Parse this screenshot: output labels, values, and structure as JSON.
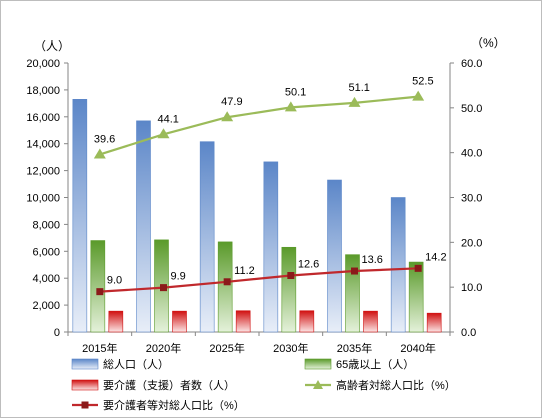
{
  "chart_data": {
    "type": "bar",
    "categories": [
      "2015年",
      "2020年",
      "2025年",
      "2030年",
      "2035年",
      "2040年"
    ],
    "y_left": {
      "unit": "（人）",
      "ylim": [
        0,
        20000
      ],
      "ticks": [
        "0",
        "2,000",
        "4,000",
        "6,000",
        "8,000",
        "10,000",
        "12,000",
        "14,000",
        "16,000",
        "18,000",
        "20,000"
      ]
    },
    "y_right": {
      "unit": "（%）",
      "ylim": [
        0,
        60
      ],
      "ticks": [
        "0.0",
        "10.0",
        "20.0",
        "30.0",
        "40.0",
        "50.0",
        "60.0"
      ]
    },
    "bar_series": [
      {
        "name": "総人口（人）",
        "color_top": "#5b86c8",
        "color_bottom": "#e8eef8",
        "values": [
          17300,
          15700,
          14150,
          12650,
          11300,
          10000
        ]
      },
      {
        "name": "65歳以上（人）",
        "color_top": "#5a9a2a",
        "color_bottom": "#e4f1da",
        "values": [
          6800,
          6850,
          6700,
          6300,
          5750,
          5200
        ]
      },
      {
        "name": "要介護（支援）者数（人）",
        "color_top": "#d01010",
        "color_bottom": "#fbe5e5",
        "values": [
          1550,
          1550,
          1580,
          1580,
          1550,
          1400
        ]
      }
    ],
    "line_series": [
      {
        "name": "高齢者対総人口比（%）",
        "color": "#9bbb59",
        "marker": "triangle",
        "values": [
          39.6,
          44.1,
          47.9,
          50.1,
          51.1,
          52.5
        ],
        "labels": [
          "39.6",
          "44.1",
          "47.9",
          "50.1",
          "51.1",
          "52.5"
        ]
      },
      {
        "name": "要介護者等対総人口比（%）",
        "color": "#c0282c",
        "marker": "square",
        "marker_color": "#8b1a1a",
        "values": [
          9.0,
          9.9,
          11.2,
          12.6,
          13.6,
          14.2
        ],
        "labels": [
          "9.0",
          "9.9",
          "11.2",
          "12.6",
          "13.6",
          "14.2"
        ]
      }
    ],
    "grid": false,
    "legend_position": "bottom"
  }
}
